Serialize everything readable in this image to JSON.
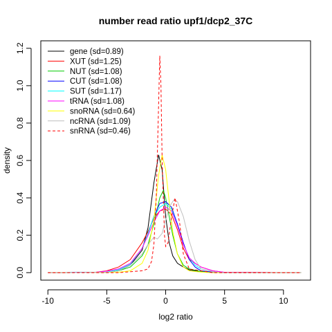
{
  "chart_data": {
    "type": "line",
    "title": "number read ratio upf1/dcp2_37C",
    "xlabel": "log2 ratio",
    "ylabel": "density",
    "xlim": [
      -10.6,
      12.3
    ],
    "ylim": [
      -0.04,
      1.24
    ],
    "x_ticks": [
      -10,
      -5,
      0,
      5,
      10
    ],
    "y_ticks": [
      0.0,
      0.2,
      0.4,
      0.6,
      0.8,
      1.0,
      1.2
    ],
    "x_tick_labels": [
      "-10",
      "-5",
      "0",
      "5",
      "10"
    ],
    "y_tick_labels": [
      "0.0",
      "0.2",
      "0.4",
      "0.6",
      "0.8",
      "1.0",
      "1.2"
    ],
    "legend_position": "top-left",
    "series": [
      {
        "name": "gene (sd=0.89)",
        "color": "#000000",
        "dashed": false,
        "x": [
          -10,
          -5,
          -4,
          -3,
          -2,
          -1.5,
          -1,
          -0.6,
          -0.3,
          0,
          0.3,
          0.6,
          1,
          1.5,
          2,
          2.5,
          3,
          4,
          5,
          11.5
        ],
        "y": [
          0,
          0.002,
          0.01,
          0.04,
          0.12,
          0.24,
          0.48,
          0.63,
          0.55,
          0.3,
          0.16,
          0.09,
          0.05,
          0.03,
          0.015,
          0.01,
          0.005,
          0.002,
          0,
          0
        ]
      },
      {
        "name": "XUT (sd=1.25)",
        "color": "#ff0000",
        "dashed": false,
        "x": [
          -10,
          -6,
          -5,
          -4,
          -3,
          -2,
          -1.5,
          -1,
          -0.5,
          0,
          0.5,
          1,
          1.5,
          2,
          2.5,
          3,
          4,
          5,
          11.5
        ],
        "y": [
          0,
          0.002,
          0.01,
          0.03,
          0.07,
          0.16,
          0.22,
          0.29,
          0.33,
          0.34,
          0.31,
          0.23,
          0.13,
          0.07,
          0.05,
          0.03,
          0.01,
          0.002,
          0
        ]
      },
      {
        "name": "NUT (sd=1.08)",
        "color": "#00cc00",
        "dashed": false,
        "x": [
          -10,
          -5,
          -4,
          -3,
          -2,
          -1.5,
          -1,
          -0.5,
          -0.2,
          0,
          0.3,
          0.6,
          1,
          1.5,
          2,
          3,
          4,
          5,
          11.5
        ],
        "y": [
          0,
          0.002,
          0.01,
          0.03,
          0.09,
          0.15,
          0.26,
          0.4,
          0.44,
          0.4,
          0.3,
          0.2,
          0.1,
          0.04,
          0.02,
          0.006,
          0.002,
          0,
          0
        ]
      },
      {
        "name": "CUT (sd=1.08)",
        "color": "#0000ff",
        "dashed": false,
        "x": [
          -10,
          -5,
          -4,
          -3,
          -2,
          -1.5,
          -1,
          -0.5,
          0,
          0.5,
          1,
          1.5,
          2,
          2.5,
          3,
          4,
          5,
          11.5
        ],
        "y": [
          0,
          0.003,
          0.015,
          0.045,
          0.13,
          0.21,
          0.3,
          0.37,
          0.38,
          0.35,
          0.26,
          0.16,
          0.07,
          0.03,
          0.01,
          0.003,
          0,
          0
        ]
      },
      {
        "name": "SUT (sd=1.17)",
        "color": "#00ffff",
        "dashed": false,
        "x": [
          -10,
          -5,
          -4,
          -3,
          -2,
          -1.5,
          -1,
          -0.5,
          0,
          0.5,
          1,
          1.5,
          2,
          2.5,
          3,
          4,
          5,
          11.5
        ],
        "y": [
          0,
          0.003,
          0.015,
          0.045,
          0.13,
          0.21,
          0.3,
          0.35,
          0.37,
          0.34,
          0.25,
          0.15,
          0.08,
          0.04,
          0.02,
          0.005,
          0,
          0
        ]
      },
      {
        "name": "tRNA (sd=1.08)",
        "color": "#ff00ff",
        "dashed": false,
        "x": [
          -10,
          -6,
          -5,
          -4,
          -3,
          -2,
          -1.5,
          -1,
          -0.5,
          0,
          0.5,
          1,
          1.5,
          2,
          2.5,
          3,
          4,
          5,
          11.5
        ],
        "y": [
          0,
          0.002,
          0.008,
          0.02,
          0.05,
          0.13,
          0.2,
          0.27,
          0.33,
          0.35,
          0.33,
          0.25,
          0.15,
          0.08,
          0.05,
          0.03,
          0.01,
          0.002,
          0
        ]
      },
      {
        "name": "snoRNA (sd=0.64)",
        "color": "#ffff00",
        "dashed": false,
        "x": [
          -10,
          -4,
          -3,
          -2,
          -1.5,
          -1,
          -0.6,
          -0.3,
          0,
          0.3,
          0.6,
          1,
          1.5,
          2,
          3,
          4,
          11.5
        ],
        "y": [
          0,
          0.002,
          0.01,
          0.05,
          0.12,
          0.28,
          0.52,
          0.63,
          0.55,
          0.38,
          0.22,
          0.1,
          0.03,
          0.01,
          0.003,
          0,
          0
        ]
      },
      {
        "name": "ncRNA (sd=1.09)",
        "color": "#bebebe",
        "dashed": false,
        "x": [
          -10,
          -5,
          -4,
          -3,
          -2,
          -1.5,
          -1,
          -0.7,
          -0.3,
          0,
          0.3,
          0.7,
          1,
          1.5,
          2,
          2.5,
          3,
          4,
          5,
          11.5
        ],
        "y": [
          0,
          0.002,
          0.01,
          0.04,
          0.1,
          0.15,
          0.19,
          0.18,
          0.21,
          0.28,
          0.35,
          0.39,
          0.38,
          0.3,
          0.17,
          0.07,
          0.02,
          0.005,
          0,
          0
        ]
      },
      {
        "name": "snRNA (sd=0.46)",
        "color": "#ff0000",
        "dashed": true,
        "x": [
          -10,
          -4,
          -2,
          -1.5,
          -1.2,
          -1,
          -0.8,
          -0.6,
          -0.5,
          -0.4,
          -0.3,
          -0.1,
          0,
          0.2,
          0.5,
          0.8,
          1.2,
          1.5,
          2,
          4,
          11.5
        ],
        "y": [
          0,
          0,
          0.01,
          0.02,
          0.06,
          0.15,
          0.4,
          0.9,
          1.16,
          1.0,
          0.6,
          0.2,
          0.14,
          0.16,
          0.3,
          0.4,
          0.26,
          0.1,
          0.02,
          0,
          0
        ]
      }
    ]
  }
}
